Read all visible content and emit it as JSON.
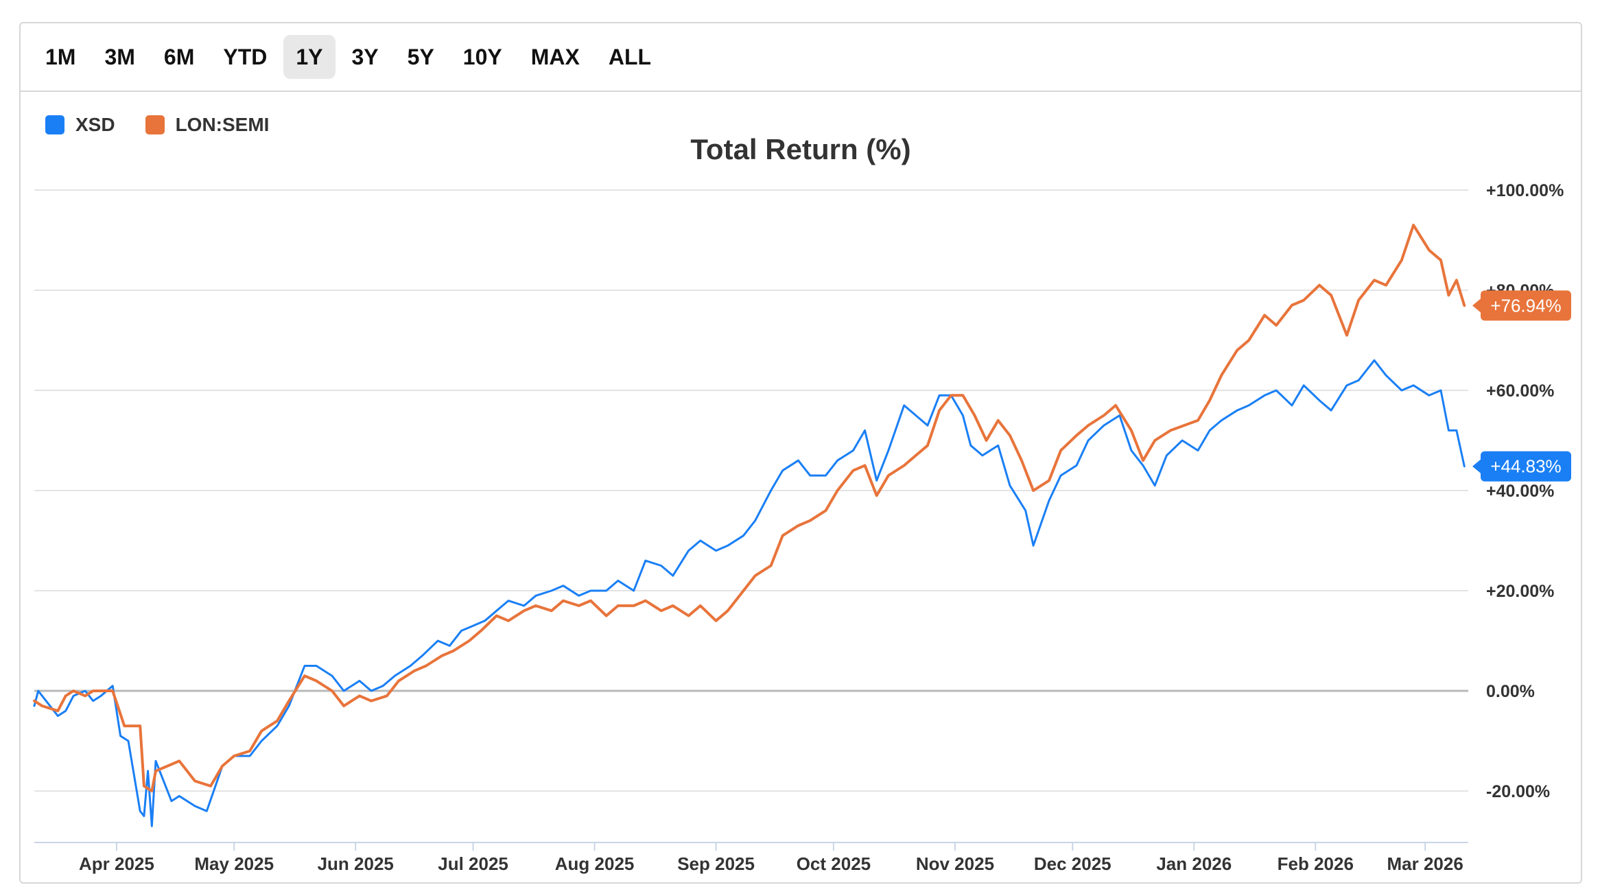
{
  "range_buttons": [
    "1M",
    "3M",
    "6M",
    "YTD",
    "1Y",
    "3Y",
    "5Y",
    "10Y",
    "MAX",
    "ALL"
  ],
  "active_range": "1Y",
  "colors": {
    "XSD": "#1a7ff5",
    "LON:SEMI": "#e8743b",
    "grid": "#e3e3e3",
    "zero": "#b8b8b8"
  },
  "chart_data": {
    "type": "line",
    "title": "Total Return (%)",
    "xlabel": "",
    "ylabel": "",
    "y_unit": "%",
    "ylim": [
      -30,
      100
    ],
    "y_ticks": [
      100,
      80,
      60,
      40,
      20,
      0,
      -20
    ],
    "y_tick_labels": [
      "+100.00%",
      "+80.00%",
      "+60.00%",
      "+40.00%",
      "+20.00%",
      "0.00%",
      "-20.00%"
    ],
    "x_range": [
      "2025-03-11",
      "2026-03-12"
    ],
    "x_ticks": [
      "2025-04-01",
      "2025-05-01",
      "2025-06-01",
      "2025-07-01",
      "2025-08-01",
      "2025-09-01",
      "2025-10-01",
      "2025-11-01",
      "2025-12-01",
      "2026-01-01",
      "2026-02-01",
      "2026-03-01"
    ],
    "x_tick_labels": [
      "Apr 2025",
      "May 2025",
      "Jun 2025",
      "Jul 2025",
      "Aug 2025",
      "Sep 2025",
      "Oct 2025",
      "Nov 2025",
      "Dec 2025",
      "Jan 2026",
      "Feb 2026",
      "Mar 2026"
    ],
    "grid": true,
    "legend_position": "top-left",
    "series": [
      {
        "name": "XSD",
        "last_label": "+44.83%",
        "points": [
          [
            "2025-03-11",
            -3
          ],
          [
            "2025-03-12",
            0
          ],
          [
            "2025-03-14",
            -2
          ],
          [
            "2025-03-17",
            -5
          ],
          [
            "2025-03-19",
            -4
          ],
          [
            "2025-03-21",
            -1
          ],
          [
            "2025-03-24",
            0
          ],
          [
            "2025-03-26",
            -2
          ],
          [
            "2025-03-28",
            -1
          ],
          [
            "2025-03-31",
            1
          ],
          [
            "2025-04-02",
            -9
          ],
          [
            "2025-04-04",
            -10
          ],
          [
            "2025-04-07",
            -24
          ],
          [
            "2025-04-08",
            -25
          ],
          [
            "2025-04-09",
            -16
          ],
          [
            "2025-04-10",
            -27
          ],
          [
            "2025-04-11",
            -14
          ],
          [
            "2025-04-15",
            -22
          ],
          [
            "2025-04-17",
            -21
          ],
          [
            "2025-04-21",
            -23
          ],
          [
            "2025-04-24",
            -24
          ],
          [
            "2025-04-28",
            -15
          ],
          [
            "2025-05-01",
            -13
          ],
          [
            "2025-05-05",
            -13
          ],
          [
            "2025-05-08",
            -10
          ],
          [
            "2025-05-12",
            -7
          ],
          [
            "2025-05-15",
            -3
          ],
          [
            "2025-05-19",
            5
          ],
          [
            "2025-05-22",
            5
          ],
          [
            "2025-05-26",
            3
          ],
          [
            "2025-05-29",
            0
          ],
          [
            "2025-06-02",
            2
          ],
          [
            "2025-06-05",
            0
          ],
          [
            "2025-06-08",
            1
          ],
          [
            "2025-06-11",
            3
          ],
          [
            "2025-06-15",
            5
          ],
          [
            "2025-06-18",
            7
          ],
          [
            "2025-06-22",
            10
          ],
          [
            "2025-06-25",
            9
          ],
          [
            "2025-06-28",
            12
          ],
          [
            "2025-07-01",
            13
          ],
          [
            "2025-07-04",
            14
          ],
          [
            "2025-07-07",
            16
          ],
          [
            "2025-07-10",
            18
          ],
          [
            "2025-07-14",
            17
          ],
          [
            "2025-07-17",
            19
          ],
          [
            "2025-07-21",
            20
          ],
          [
            "2025-07-24",
            21
          ],
          [
            "2025-07-28",
            19
          ],
          [
            "2025-07-31",
            20
          ],
          [
            "2025-08-04",
            20
          ],
          [
            "2025-08-07",
            22
          ],
          [
            "2025-08-11",
            20
          ],
          [
            "2025-08-14",
            26
          ],
          [
            "2025-08-18",
            25
          ],
          [
            "2025-08-21",
            23
          ],
          [
            "2025-08-25",
            28
          ],
          [
            "2025-08-28",
            30
          ],
          [
            "2025-09-01",
            28
          ],
          [
            "2025-09-04",
            29
          ],
          [
            "2025-09-08",
            31
          ],
          [
            "2025-09-11",
            34
          ],
          [
            "2025-09-15",
            40
          ],
          [
            "2025-09-18",
            44
          ],
          [
            "2025-09-22",
            46
          ],
          [
            "2025-09-25",
            43
          ],
          [
            "2025-09-29",
            43
          ],
          [
            "2025-10-02",
            46
          ],
          [
            "2025-10-06",
            48
          ],
          [
            "2025-10-09",
            52
          ],
          [
            "2025-10-12",
            42
          ],
          [
            "2025-10-15",
            48
          ],
          [
            "2025-10-19",
            57
          ],
          [
            "2025-10-22",
            55
          ],
          [
            "2025-10-25",
            53
          ],
          [
            "2025-10-28",
            59
          ],
          [
            "2025-10-31",
            59
          ],
          [
            "2025-11-03",
            55
          ],
          [
            "2025-11-05",
            49
          ],
          [
            "2025-11-08",
            47
          ],
          [
            "2025-11-12",
            49
          ],
          [
            "2025-11-15",
            41
          ],
          [
            "2025-11-19",
            36
          ],
          [
            "2025-11-21",
            29
          ],
          [
            "2025-11-25",
            38
          ],
          [
            "2025-11-28",
            43
          ],
          [
            "2025-12-02",
            45
          ],
          [
            "2025-12-05",
            50
          ],
          [
            "2025-12-09",
            53
          ],
          [
            "2025-12-13",
            55
          ],
          [
            "2025-12-16",
            48
          ],
          [
            "2025-12-19",
            45
          ],
          [
            "2025-12-22",
            41
          ],
          [
            "2025-12-25",
            47
          ],
          [
            "2025-12-29",
            50
          ],
          [
            "2026-01-02",
            48
          ],
          [
            "2026-01-05",
            52
          ],
          [
            "2026-01-08",
            54
          ],
          [
            "2026-01-12",
            56
          ],
          [
            "2026-01-15",
            57
          ],
          [
            "2026-01-19",
            59
          ],
          [
            "2026-01-22",
            60
          ],
          [
            "2026-01-26",
            57
          ],
          [
            "2026-01-29",
            61
          ],
          [
            "2026-02-02",
            58
          ],
          [
            "2026-02-05",
            56
          ],
          [
            "2026-02-09",
            61
          ],
          [
            "2026-02-12",
            62
          ],
          [
            "2026-02-16",
            66
          ],
          [
            "2026-02-19",
            63
          ],
          [
            "2026-02-23",
            60
          ],
          [
            "2026-02-26",
            61
          ],
          [
            "2026-03-02",
            59
          ],
          [
            "2026-03-05",
            60
          ],
          [
            "2026-03-07",
            52
          ],
          [
            "2026-03-09",
            52
          ],
          [
            "2026-03-11",
            44.83
          ]
        ]
      },
      {
        "name": "LON:SEMI",
        "last_label": "+76.94%",
        "points": [
          [
            "2025-03-11",
            -2
          ],
          [
            "2025-03-13",
            -3
          ],
          [
            "2025-03-17",
            -4
          ],
          [
            "2025-03-19",
            -1
          ],
          [
            "2025-03-21",
            0
          ],
          [
            "2025-03-24",
            -1
          ],
          [
            "2025-03-26",
            0
          ],
          [
            "2025-03-28",
            0
          ],
          [
            "2025-03-31",
            0
          ],
          [
            "2025-04-03",
            -7
          ],
          [
            "2025-04-07",
            -7
          ],
          [
            "2025-04-08",
            -19
          ],
          [
            "2025-04-10",
            -20
          ],
          [
            "2025-04-11",
            -16
          ],
          [
            "2025-04-14",
            -15
          ],
          [
            "2025-04-17",
            -14
          ],
          [
            "2025-04-21",
            -18
          ],
          [
            "2025-04-25",
            -19
          ],
          [
            "2025-04-28",
            -15
          ],
          [
            "2025-05-01",
            -13
          ],
          [
            "2025-05-05",
            -12
          ],
          [
            "2025-05-08",
            -8
          ],
          [
            "2025-05-12",
            -6
          ],
          [
            "2025-05-15",
            -2
          ],
          [
            "2025-05-19",
            3
          ],
          [
            "2025-05-22",
            2
          ],
          [
            "2025-05-26",
            0
          ],
          [
            "2025-05-29",
            -3
          ],
          [
            "2025-06-02",
            -1
          ],
          [
            "2025-06-05",
            -2
          ],
          [
            "2025-06-09",
            -1
          ],
          [
            "2025-06-12",
            2
          ],
          [
            "2025-06-16",
            4
          ],
          [
            "2025-06-19",
            5
          ],
          [
            "2025-06-23",
            7
          ],
          [
            "2025-06-26",
            8
          ],
          [
            "2025-06-30",
            10
          ],
          [
            "2025-07-03",
            12
          ],
          [
            "2025-07-07",
            15
          ],
          [
            "2025-07-10",
            14
          ],
          [
            "2025-07-14",
            16
          ],
          [
            "2025-07-17",
            17
          ],
          [
            "2025-07-21",
            16
          ],
          [
            "2025-07-24",
            18
          ],
          [
            "2025-07-28",
            17
          ],
          [
            "2025-07-31",
            18
          ],
          [
            "2025-08-04",
            15
          ],
          [
            "2025-08-07",
            17
          ],
          [
            "2025-08-11",
            17
          ],
          [
            "2025-08-14",
            18
          ],
          [
            "2025-08-18",
            16
          ],
          [
            "2025-08-21",
            17
          ],
          [
            "2025-08-25",
            15
          ],
          [
            "2025-08-28",
            17
          ],
          [
            "2025-09-01",
            14
          ],
          [
            "2025-09-04",
            16
          ],
          [
            "2025-09-08",
            20
          ],
          [
            "2025-09-11",
            23
          ],
          [
            "2025-09-15",
            25
          ],
          [
            "2025-09-18",
            31
          ],
          [
            "2025-09-22",
            33
          ],
          [
            "2025-09-25",
            34
          ],
          [
            "2025-09-29",
            36
          ],
          [
            "2025-10-02",
            40
          ],
          [
            "2025-10-06",
            44
          ],
          [
            "2025-10-09",
            45
          ],
          [
            "2025-10-12",
            39
          ],
          [
            "2025-10-15",
            43
          ],
          [
            "2025-10-19",
            45
          ],
          [
            "2025-10-22",
            47
          ],
          [
            "2025-10-25",
            49
          ],
          [
            "2025-10-28",
            56
          ],
          [
            "2025-10-31",
            59
          ],
          [
            "2025-11-03",
            59
          ],
          [
            "2025-11-06",
            55
          ],
          [
            "2025-11-09",
            50
          ],
          [
            "2025-11-12",
            54
          ],
          [
            "2025-11-15",
            51
          ],
          [
            "2025-11-18",
            46
          ],
          [
            "2025-11-21",
            40
          ],
          [
            "2025-11-25",
            42
          ],
          [
            "2025-11-28",
            48
          ],
          [
            "2025-12-02",
            51
          ],
          [
            "2025-12-05",
            53
          ],
          [
            "2025-12-09",
            55
          ],
          [
            "2025-12-12",
            57
          ],
          [
            "2025-12-16",
            52
          ],
          [
            "2025-12-19",
            46
          ],
          [
            "2025-12-22",
            50
          ],
          [
            "2025-12-26",
            52
          ],
          [
            "2026-01-02",
            54
          ],
          [
            "2026-01-05",
            58
          ],
          [
            "2026-01-08",
            63
          ],
          [
            "2026-01-12",
            68
          ],
          [
            "2026-01-15",
            70
          ],
          [
            "2026-01-19",
            75
          ],
          [
            "2026-01-22",
            73
          ],
          [
            "2026-01-26",
            77
          ],
          [
            "2026-01-29",
            78
          ],
          [
            "2026-02-02",
            81
          ],
          [
            "2026-02-05",
            79
          ],
          [
            "2026-02-09",
            71
          ],
          [
            "2026-02-12",
            78
          ],
          [
            "2026-02-16",
            82
          ],
          [
            "2026-02-19",
            81
          ],
          [
            "2026-02-23",
            86
          ],
          [
            "2026-02-26",
            93
          ],
          [
            "2026-03-02",
            88
          ],
          [
            "2026-03-05",
            86
          ],
          [
            "2026-03-07",
            79
          ],
          [
            "2026-03-09",
            82
          ],
          [
            "2026-03-11",
            76.94
          ]
        ]
      }
    ]
  }
}
